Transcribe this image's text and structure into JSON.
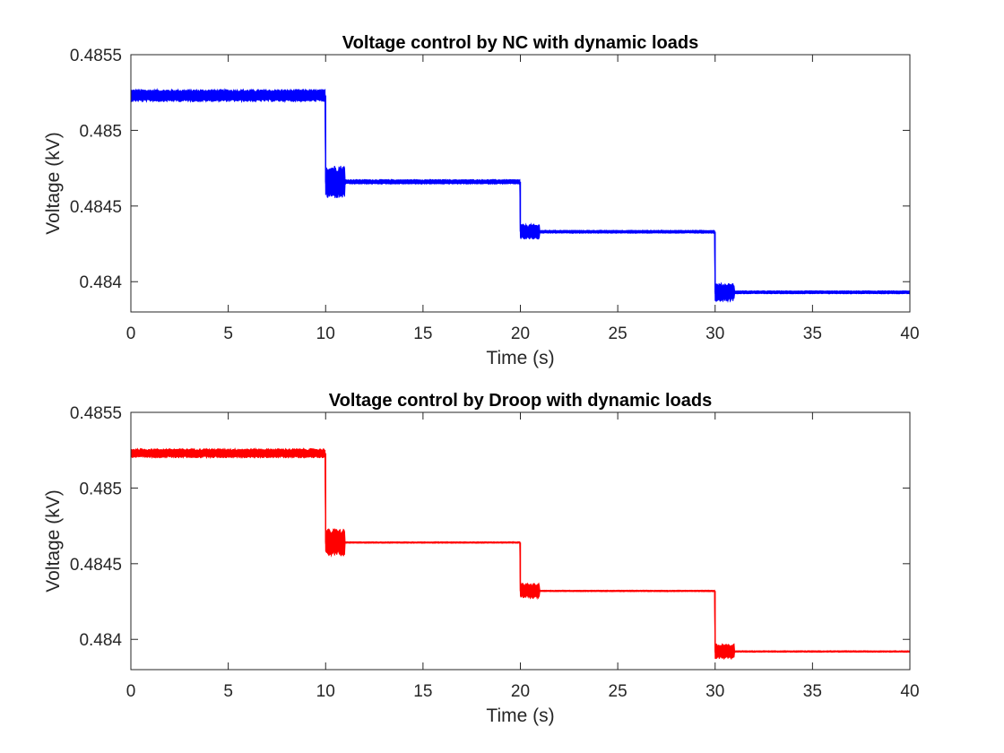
{
  "colors": {
    "background": "#ffffff",
    "axes": "#262626",
    "nc_series": "#0000ff",
    "droop_series": "#ff0000"
  },
  "chart_data": [
    {
      "type": "line",
      "title": "Voltage control by NC with dynamic loads",
      "xlabel": "Time (s)",
      "ylabel": "Voltage (kV)",
      "xlim": [
        0,
        40
      ],
      "ylim": [
        0.4838,
        0.4855
      ],
      "xticks": [
        0,
        5,
        10,
        15,
        20,
        25,
        30,
        35,
        40
      ],
      "xtick_labels": [
        "0",
        "5",
        "10",
        "15",
        "20",
        "25",
        "30",
        "35",
        "40"
      ],
      "yticks": [
        0.484,
        0.4845,
        0.485,
        0.4855
      ],
      "ytick_labels": [
        "0.484",
        "0.4845",
        "0.485",
        "0.4855"
      ],
      "grid": false,
      "line_color": "#0000ff",
      "segments": [
        {
          "t_start": 0,
          "t_end": 10,
          "level": 0.48523,
          "band": 4e-05,
          "transient_end": 10,
          "transient_band": 4e-05
        },
        {
          "t_start": 10,
          "t_end": 20,
          "level": 0.48466,
          "band": 1.5e-05,
          "transient_end": 11.0,
          "transient_band": 0.00011
        },
        {
          "t_start": 20,
          "t_end": 30,
          "level": 0.48433,
          "band": 1e-05,
          "transient_end": 21.0,
          "transient_band": 5e-05
        },
        {
          "t_start": 30,
          "t_end": 40,
          "level": 0.48393,
          "band": 1e-05,
          "transient_end": 31.0,
          "transient_band": 6e-05
        }
      ]
    },
    {
      "type": "line",
      "title": "Voltage control by Droop with dynamic loads",
      "xlabel": "Time (s)",
      "ylabel": "Voltage (kV)",
      "xlim": [
        0,
        40
      ],
      "ylim": [
        0.4838,
        0.4855
      ],
      "xticks": [
        0,
        5,
        10,
        15,
        20,
        25,
        30,
        35,
        40
      ],
      "xtick_labels": [
        "0",
        "5",
        "10",
        "15",
        "20",
        "25",
        "30",
        "35",
        "40"
      ],
      "yticks": [
        0.484,
        0.4845,
        0.485,
        0.4855
      ],
      "ytick_labels": [
        "0.484",
        "0.4845",
        "0.485",
        "0.4855"
      ],
      "grid": false,
      "line_color": "#ff0000",
      "segments": [
        {
          "t_start": 0,
          "t_end": 10,
          "level": 0.48523,
          "band": 3e-05,
          "transient_end": 10,
          "transient_band": 3e-05
        },
        {
          "t_start": 10,
          "t_end": 20,
          "level": 0.48464,
          "band": 5e-06,
          "transient_end": 11.0,
          "transient_band": 9e-05
        },
        {
          "t_start": 20,
          "t_end": 30,
          "level": 0.48432,
          "band": 5e-06,
          "transient_end": 21.0,
          "transient_band": 5e-05
        },
        {
          "t_start": 30,
          "t_end": 40,
          "level": 0.48392,
          "band": 5e-06,
          "transient_end": 31.0,
          "transient_band": 5e-05
        }
      ]
    }
  ]
}
